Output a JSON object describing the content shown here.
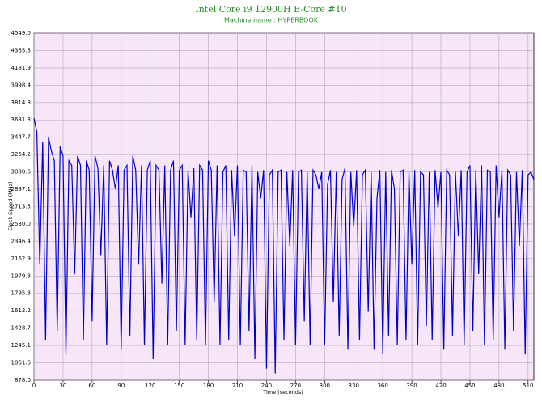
{
  "chart_data": {
    "type": "line",
    "title": "Intel Core i9 12900H E-Core #10",
    "subtitle": "Machine name : HYPERBOOK",
    "x_label": "Time (seconds)",
    "y_label": "Clock Speed (MHz)",
    "grid": true,
    "xlim": [
      0,
      516
    ],
    "xticks": [
      0,
      30,
      60,
      90,
      120,
      150,
      180,
      210,
      240,
      270,
      300,
      330,
      360,
      390,
      420,
      450,
      480,
      510
    ],
    "ylim": [
      878,
      4549
    ],
    "yticks": [
      {
        "value": 878,
        "label": "878.0"
      },
      1061.6,
      1245.1,
      1428.7,
      1612.2,
      1795.8,
      1979.3,
      2162.9,
      2346.4,
      {
        "value": 2530,
        "label": "2530.0"
      },
      2713.5,
      2897.1,
      3080.6,
      3264.2,
      3447.7,
      3631.3,
      3814.8,
      3998.4,
      4181.9,
      4365.5,
      {
        "value": 4549,
        "label": "4549.0"
      }
    ],
    "x": [
      0,
      3,
      6,
      9,
      12,
      15,
      18,
      21,
      24,
      27,
      30,
      33,
      36,
      39,
      42,
      45,
      48,
      51,
      54,
      57,
      60,
      63,
      66,
      69,
      72,
      75,
      78,
      81,
      84,
      87,
      90,
      93,
      96,
      99,
      102,
      105,
      108,
      111,
      114,
      117,
      120,
      123,
      126,
      129,
      132,
      135,
      138,
      141,
      144,
      147,
      150,
      153,
      156,
      159,
      162,
      165,
      168,
      171,
      174,
      177,
      180,
      183,
      186,
      189,
      192,
      195,
      198,
      201,
      204,
      207,
      210,
      213,
      216,
      219,
      222,
      225,
      228,
      231,
      234,
      237,
      240,
      243,
      246,
      249,
      252,
      255,
      258,
      261,
      264,
      267,
      270,
      273,
      276,
      279,
      282,
      285,
      288,
      291,
      294,
      297,
      300,
      303,
      306,
      309,
      312,
      315,
      318,
      321,
      324,
      327,
      330,
      333,
      336,
      339,
      342,
      345,
      348,
      351,
      354,
      357,
      360,
      363,
      366,
      369,
      372,
      375,
      378,
      381,
      384,
      387,
      390,
      393,
      396,
      399,
      402,
      405,
      408,
      411,
      414,
      417,
      420,
      423,
      426,
      429,
      432,
      435,
      438,
      441,
      444,
      447,
      450,
      453,
      456,
      459,
      462,
      465,
      468,
      471,
      474,
      477,
      480,
      483,
      486,
      489,
      492,
      495,
      498,
      501,
      504,
      507,
      510,
      513,
      516
    ],
    "series": [
      {
        "name": "Clock Speed",
        "color": "#0000cc",
        "values": [
          3650,
          3500,
          2100,
          3400,
          1300,
          3450,
          3300,
          3200,
          1400,
          3350,
          3250,
          1150,
          3200,
          3150,
          2000,
          3250,
          3150,
          1300,
          3200,
          3100,
          1500,
          3250,
          3120,
          2200,
          3150,
          1250,
          3200,
          3100,
          2900,
          3150,
          1200,
          3100,
          3150,
          1350,
          3250,
          3100,
          2100,
          3150,
          1250,
          3100,
          3200,
          1100,
          3150,
          3100,
          1900,
          3150,
          1250,
          3100,
          3200,
          1400,
          3100,
          3150,
          1250,
          3100,
          2600,
          3120,
          1300,
          3150,
          3100,
          1250,
          3200,
          3100,
          1700,
          3150,
          1250,
          3080,
          3150,
          1300,
          3100,
          2400,
          3150,
          1250,
          3100,
          3080,
          1400,
          3150,
          1100,
          3080,
          2800,
          3100,
          1000,
          3050,
          3100,
          950,
          3080,
          3100,
          1300,
          3080,
          2300,
          3100,
          1250,
          3080,
          3100,
          1500,
          3080,
          1250,
          3100,
          3050,
          2900,
          3080,
          1250,
          2950,
          3100,
          1700,
          3080,
          1350,
          3000,
          3120,
          1200,
          3080,
          2500,
          3100,
          1300,
          3050,
          3100,
          1600,
          3080,
          1200,
          2800,
          3100,
          1150,
          3080,
          1350,
          3100,
          2900,
          1250,
          3080,
          3100,
          1300,
          3080,
          2100,
          3100,
          1250,
          3080,
          3050,
          1450,
          3080,
          1300,
          3100,
          2700,
          3080,
          1200,
          3100,
          3050,
          1350,
          3080,
          2400,
          3100,
          1250,
          3080,
          3150,
          1400,
          3100,
          2000,
          3150,
          1250,
          3100,
          3080,
          1300,
          3150,
          2600,
          3100,
          1200,
          3100,
          3050,
          1400,
          3080,
          2300,
          3100,
          1150,
          3050,
          3080,
          3000
        ]
      }
    ]
  }
}
